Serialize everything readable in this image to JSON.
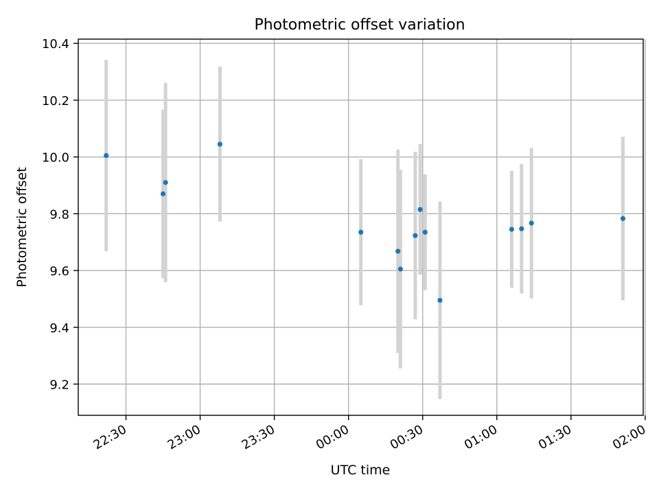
{
  "chart_data": {
    "type": "scatter",
    "title": "Photometric offset variation",
    "xlabel": "UTC time",
    "ylabel": "Photometric offset",
    "x_axis_kind": "time",
    "x_tick_labels": [
      "22:30",
      "23:00",
      "23:30",
      "00:00",
      "00:30",
      "01:00",
      "01:30",
      "02:00"
    ],
    "x_tick_minutes": [
      -90,
      -60,
      -30,
      0,
      30,
      60,
      90,
      120
    ],
    "xlim_minutes": [
      -109.3,
      119.2
    ],
    "ylim": [
      9.09,
      10.415
    ],
    "y_ticks": [
      9.2,
      9.4,
      9.6,
      9.8,
      10.0,
      10.2,
      10.4
    ],
    "y_tick_labels": [
      "9.2",
      "9.4",
      "9.6",
      "9.8",
      "10.0",
      "10.2",
      "10.4"
    ],
    "grid": true,
    "colors": {
      "point": "#1f77b4",
      "errorbar": "#d3d3d3",
      "grid": "#b0b0b0"
    },
    "points": [
      {
        "time": "22:22",
        "y": 10.005,
        "err": 0.337
      },
      {
        "time": "22:45",
        "y": 9.87,
        "err": 0.297
      },
      {
        "time": "22:46",
        "y": 9.91,
        "err": 0.351
      },
      {
        "time": "23:08",
        "y": 10.045,
        "err": 0.273
      },
      {
        "time": "00:05",
        "y": 9.735,
        "err": 0.257
      },
      {
        "time": "00:20",
        "y": 9.668,
        "err": 0.358
      },
      {
        "time": "00:21",
        "y": 9.605,
        "err": 0.35
      },
      {
        "time": "00:27",
        "y": 9.723,
        "err": 0.295
      },
      {
        "time": "00:29",
        "y": 9.815,
        "err": 0.23
      },
      {
        "time": "00:31",
        "y": 9.735,
        "err": 0.204
      },
      {
        "time": "00:37",
        "y": 9.495,
        "err": 0.348
      },
      {
        "time": "01:06",
        "y": 9.745,
        "err": 0.206
      },
      {
        "time": "01:10",
        "y": 9.747,
        "err": 0.228
      },
      {
        "time": "01:14",
        "y": 9.767,
        "err": 0.265
      },
      {
        "time": "01:51",
        "y": 9.783,
        "err": 0.288
      }
    ]
  }
}
